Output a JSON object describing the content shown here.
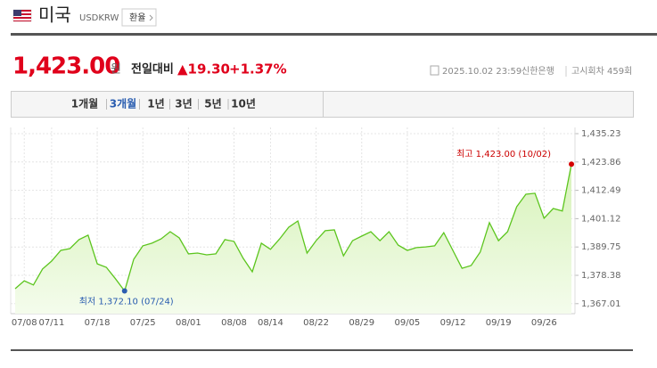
{
  "header": {
    "country": "미국",
    "code": "USDKRW",
    "button": "환율"
  },
  "quote": {
    "price": "1,423.00",
    "unit": "원",
    "change_label": "전일대비",
    "change": "▲19.30",
    "change_pct": "+1.37%",
    "datetime": "2025.10.02 23:59",
    "bank": "신한은행",
    "round": "고시회차 459회"
  },
  "tabs": {
    "items": [
      "1개월",
      "3개월",
      "1년",
      "3년",
      "5년",
      "10년"
    ],
    "selected": 1
  },
  "chart_data": {
    "type": "line",
    "color": "#5cc51e",
    "fill": "#dff5c8",
    "categories": [
      null,
      "07/08",
      null,
      null,
      "07/11",
      null,
      null,
      null,
      null,
      "07/18",
      null,
      null,
      null,
      null,
      "07/25",
      null,
      null,
      null,
      null,
      "08/01",
      null,
      null,
      null,
      null,
      "08/08",
      null,
      null,
      null,
      "08/14",
      null,
      null,
      null,
      null,
      "08/22",
      null,
      null,
      null,
      null,
      "08/29",
      null,
      null,
      null,
      null,
      "09/05",
      null,
      null,
      null,
      null,
      "09/12",
      null,
      null,
      null,
      null,
      "09/19",
      null,
      null,
      null,
      null,
      "09/26",
      null,
      null,
      null
    ],
    "values": [
      1373.0,
      1376.2,
      1374.5,
      1380.9,
      1384.1,
      1388.4,
      1389.1,
      1392.7,
      1394.5,
      1383.0,
      1381.6,
      1377.0,
      1372.1,
      1384.8,
      1390.2,
      1391.3,
      1393.0,
      1395.9,
      1393.4,
      1387.0,
      1387.3,
      1386.6,
      1387.0,
      1392.7,
      1392.0,
      1385.2,
      1379.8,
      1391.3,
      1388.8,
      1393.0,
      1397.7,
      1400.2,
      1387.3,
      1392.3,
      1396.3,
      1396.6,
      1386.2,
      1392.3,
      1394.1,
      1395.9,
      1392.3,
      1395.9,
      1390.5,
      1388.4,
      1389.5,
      1389.8,
      1390.2,
      1395.5,
      1388.4,
      1381.2,
      1382.3,
      1387.7,
      1399.5,
      1392.3,
      1395.9,
      1405.9,
      1410.9,
      1411.3,
      1401.3,
      1405.2,
      1404.2,
      1423.0
    ],
    "ylim": [
      1363,
      1435.23
    ],
    "yticks": [
      {
        "value": 1435.23,
        "label": "1,435.23"
      },
      {
        "value": 1423.86,
        "label": "1,423.86"
      },
      {
        "value": 1412.49,
        "label": "1,412.49"
      },
      {
        "value": 1401.12,
        "label": "1,401.12"
      },
      {
        "value": 1389.75,
        "label": "1,389.75"
      },
      {
        "value": 1378.38,
        "label": "1,378.38"
      },
      {
        "value": 1367.01,
        "label": "1,367.01"
      }
    ],
    "max_label": "최고 1,423.00 (10/02)",
    "min_label": "최저 1,372.10 (07/24)",
    "grid": true
  }
}
